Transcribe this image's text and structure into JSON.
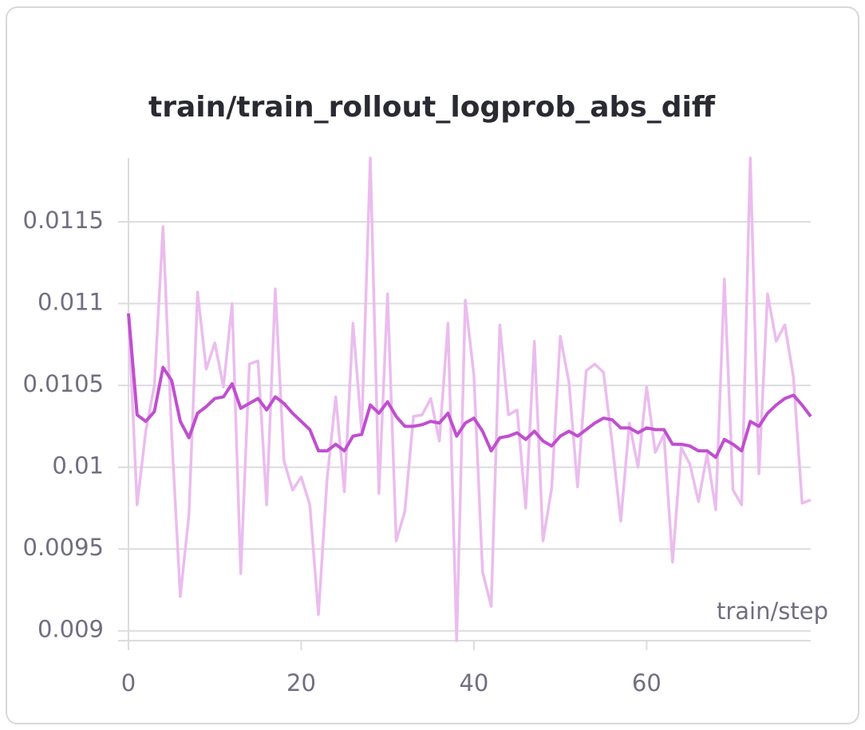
{
  "chart_data": {
    "type": "line",
    "title": "train/train_rollout_logprob_abs_diff",
    "x_label": "train/step",
    "x": [
      0,
      1,
      2,
      3,
      4,
      5,
      6,
      7,
      8,
      9,
      10,
      11,
      12,
      13,
      14,
      15,
      16,
      17,
      18,
      19,
      20,
      21,
      22,
      23,
      24,
      25,
      26,
      27,
      28,
      29,
      30,
      31,
      32,
      33,
      34,
      35,
      36,
      37,
      38,
      39,
      40,
      41,
      42,
      43,
      44,
      45,
      46,
      47,
      48,
      49,
      50,
      51,
      52,
      53,
      54,
      55,
      56,
      57,
      58,
      59,
      60,
      61,
      62,
      63,
      64,
      65,
      66,
      67,
      68,
      69,
      70,
      71,
      72,
      73,
      74,
      75,
      76,
      77,
      78,
      79
    ],
    "series": [
      {
        "color": "#ebbcee",
        "values": [
          0.01094,
          0.00977,
          0.01022,
          0.0105,
          0.01147,
          0.0102,
          0.00921,
          0.00971,
          0.01107,
          0.0106,
          0.01076,
          0.01049,
          0.011,
          0.00935,
          0.01063,
          0.01065,
          0.00977,
          0.01109,
          0.01004,
          0.00986,
          0.00994,
          0.00977,
          0.0091,
          0.00993,
          0.01043,
          0.00985,
          0.01088,
          0.01022,
          0.01189,
          0.00984,
          0.01106,
          0.00955,
          0.00973,
          0.01031,
          0.01032,
          0.01042,
          0.01016,
          0.01088,
          0.00894,
          0.01102,
          0.01056,
          0.00936,
          0.00915,
          0.01087,
          0.01032,
          0.01035,
          0.00975,
          0.01077,
          0.00955,
          0.00987,
          0.0108,
          0.01052,
          0.00988,
          0.01059,
          0.01063,
          0.01058,
          0.01015,
          0.00967,
          0.01027,
          0.01,
          0.01049,
          0.01009,
          0.0102,
          0.00942,
          0.01012,
          0.01002,
          0.00979,
          0.01008,
          0.00974,
          0.01115,
          0.00986,
          0.00977,
          0.01189,
          0.00996,
          0.01106,
          0.01077,
          0.01087,
          0.01055,
          0.00978,
          0.0098
        ]
      },
      {
        "color": "#c04fcf",
        "values": [
          0.01094,
          0.01032,
          0.01028,
          0.01034,
          0.01061,
          0.01053,
          0.01028,
          0.01018,
          0.01033,
          0.01037,
          0.01042,
          0.01043,
          0.01051,
          0.01036,
          0.01039,
          0.01042,
          0.01035,
          0.01043,
          0.01039,
          0.01033,
          0.01028,
          0.01023,
          0.0101,
          0.0101,
          0.01014,
          0.0101,
          0.01019,
          0.0102,
          0.01038,
          0.01033,
          0.0104,
          0.01031,
          0.01025,
          0.01025,
          0.01026,
          0.01028,
          0.01027,
          0.01033,
          0.01019,
          0.01027,
          0.0103,
          0.01022,
          0.0101,
          0.01018,
          0.01019,
          0.01021,
          0.01017,
          0.01022,
          0.01016,
          0.01013,
          0.01019,
          0.01022,
          0.01019,
          0.01023,
          0.01027,
          0.0103,
          0.01029,
          0.01024,
          0.01024,
          0.01021,
          0.01024,
          0.01023,
          0.01023,
          0.01014,
          0.01014,
          0.01013,
          0.0101,
          0.0101,
          0.01006,
          0.01017,
          0.01014,
          0.0101,
          0.01028,
          0.01025,
          0.01033,
          0.01038,
          0.01042,
          0.01044,
          0.01038,
          0.01031
        ]
      }
    ],
    "xlim": [
      0,
      79
    ],
    "xticks": [
      0,
      20,
      40,
      60
    ],
    "ylim": [
      0.00894,
      0.01189
    ],
    "yticks": [
      0.009,
      0.0095,
      0.01,
      0.0105,
      0.011,
      0.0115
    ],
    "grid": true
  }
}
